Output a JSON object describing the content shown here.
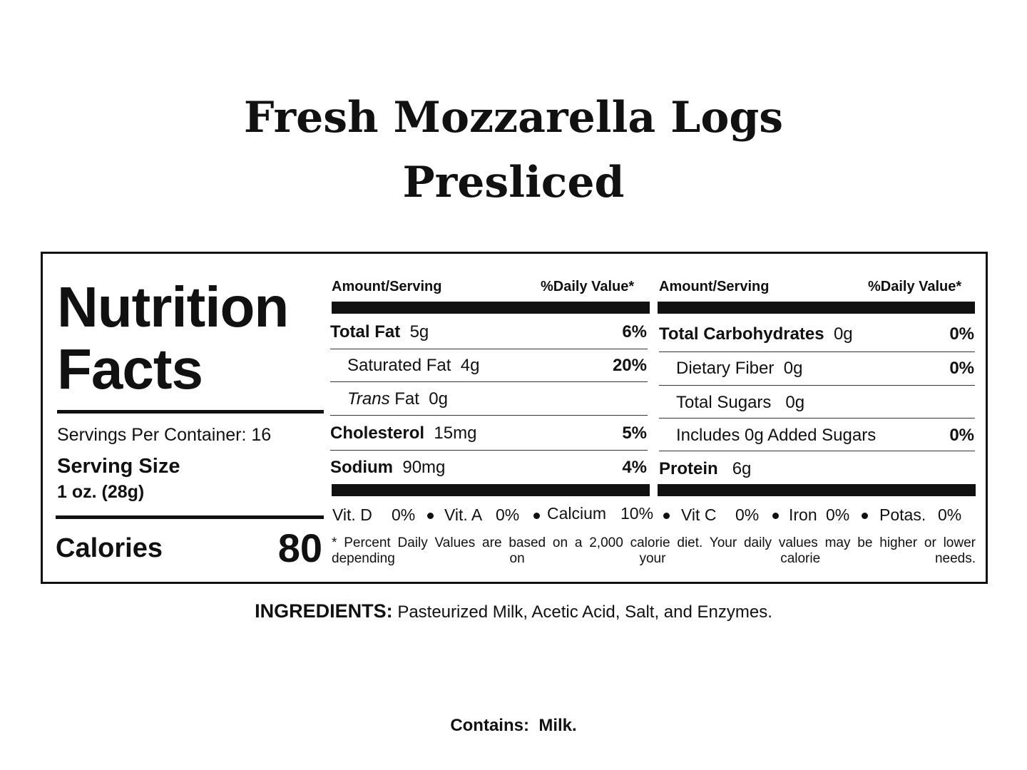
{
  "product": {
    "title_line1": "Fresh Mozzarella Logs",
    "title_line2": "Presliced"
  },
  "label": {
    "heading_line1": "Nutrition",
    "heading_line2": "Facts",
    "servings_per_container": "Servings Per Container: 16",
    "serving_size_label": "Serving Size",
    "serving_size_value": "1 oz. (28g)",
    "calories_label": "Calories",
    "calories_value": "80",
    "col_left": {
      "amount_header": "Amount/Serving",
      "dv_header": "%Daily Value*",
      "rows": [
        {
          "name": "Total Fat",
          "amount": "5g",
          "dv": "6%"
        },
        {
          "name": "Saturated Fat",
          "amount": "4g",
          "dv": "20%"
        },
        {
          "name_italic": "Trans",
          "name": " Fat",
          "amount": "0g",
          "dv": ""
        },
        {
          "name": "Cholesterol",
          "amount": "15mg",
          "dv": "5%"
        },
        {
          "name": "Sodium",
          "amount": "90mg",
          "dv": "4%"
        }
      ]
    },
    "col_right": {
      "amount_header": "Amount/Serving",
      "dv_header": "%Daily Value*",
      "rows": [
        {
          "name": "Total Carbohydrates",
          "amount": "0g",
          "dv": "0%"
        },
        {
          "name": "Dietary Fiber",
          "amount": "0g",
          "dv": "0%"
        },
        {
          "name": "Total Sugars",
          "amount": "0g",
          "dv": ""
        },
        {
          "name": "Includes 0g Added Sugars",
          "amount": "",
          "dv": "0%"
        },
        {
          "name": "Protein",
          "amount": "6g",
          "dv": ""
        }
      ]
    },
    "vitamins": [
      {
        "name": "Vit. D",
        "value": "0%"
      },
      {
        "name": "Vit. A",
        "value": "0%"
      },
      {
        "name": "Calcium",
        "value": "10%"
      },
      {
        "name": "Vit C",
        "value": "0%"
      },
      {
        "name": "Iron",
        "value": "0%"
      },
      {
        "name": "Potas.",
        "value": "0%"
      }
    ],
    "footnote": "* Percent Daily Values are based on a 2,000 calorie diet. Your daily values may be higher or lower depending on your calorie needs."
  },
  "ingredients": {
    "label": "INGREDIENTS:",
    "text": "Pasteurized Milk, Acetic Acid, Salt, and Enzymes."
  },
  "allergens": {
    "label": "Contains:",
    "text": "Milk."
  },
  "colors": {
    "text": "#111111",
    "background": "#ffffff"
  }
}
